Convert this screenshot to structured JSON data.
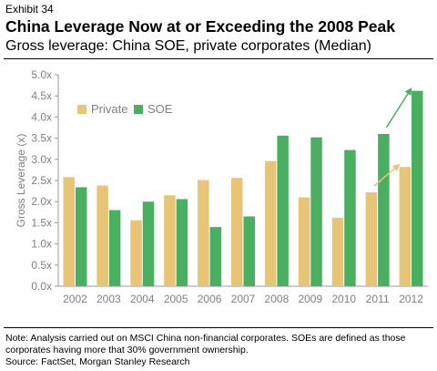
{
  "header": {
    "exhibit": "Exhibit 34",
    "title": "China Leverage Now at or Exceeding the 2008 Peak",
    "subtitle": "Gross leverage: China SOE, private corporates (Median)"
  },
  "footer": {
    "note_line1": "Note: Analysis carried out on MSCI China non-financial corporates. SOEs are defined as those",
    "note_line2": "corporates having more that 30% government ownership.",
    "source": "Source: FactSet, Morgan Stanley Research"
  },
  "chart_data": {
    "type": "bar",
    "categories": [
      "2002",
      "2003",
      "2004",
      "2005",
      "2006",
      "2007",
      "2008",
      "2009",
      "2010",
      "2011",
      "2012"
    ],
    "series": [
      {
        "name": "Private",
        "color": "#E8C477",
        "values": [
          2.58,
          2.38,
          1.56,
          2.15,
          2.51,
          2.56,
          2.96,
          2.1,
          1.62,
          2.22,
          2.82
        ]
      },
      {
        "name": "SOE",
        "color": "#4BAF62",
        "values": [
          2.34,
          1.8,
          2.0,
          2.06,
          1.4,
          1.65,
          3.56,
          3.52,
          3.22,
          3.6,
          4.62
        ]
      }
    ],
    "ylabel": "Gross Leverage (x)",
    "xlabel": "",
    "ylim": [
      0,
      5
    ],
    "yticks": [
      "0.0x",
      "0.5x",
      "1.0x",
      "1.5x",
      "2.0x",
      "2.5x",
      "3.0x",
      "3.5x",
      "4.0x",
      "4.5x",
      "5.0x"
    ],
    "grid": false,
    "legend_position": "top-left",
    "annotations": [
      {
        "type": "arrow",
        "series": "Private",
        "category": "2012",
        "color": "#E8C477"
      },
      {
        "type": "arrow",
        "series": "SOE",
        "category": "2012",
        "color": "#4BAF62"
      }
    ]
  }
}
